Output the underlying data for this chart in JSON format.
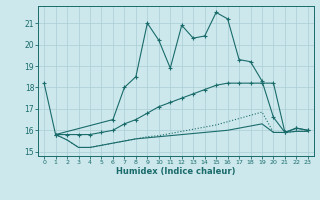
{
  "xlabel": "Humidex (Indice chaleur)",
  "bg_color": "#cce8ec",
  "grid_color": "#aacdd4",
  "line_color": "#1a6b6b",
  "xlim": [
    -0.5,
    23.5
  ],
  "ylim": [
    14.8,
    21.8
  ],
  "yticks": [
    15,
    16,
    17,
    18,
    19,
    20,
    21
  ],
  "xticks": [
    0,
    1,
    2,
    3,
    4,
    5,
    6,
    7,
    8,
    9,
    10,
    11,
    12,
    13,
    14,
    15,
    16,
    17,
    18,
    19,
    20,
    21,
    22,
    23
  ],
  "line1_x": [
    0,
    1,
    6,
    7,
    8,
    9,
    10,
    11,
    12,
    13,
    14,
    15,
    16,
    17,
    18,
    19,
    20,
    21,
    22,
    23
  ],
  "line1_y": [
    18.2,
    15.8,
    16.5,
    18.0,
    18.5,
    21.0,
    20.2,
    18.9,
    20.9,
    20.3,
    20.4,
    21.5,
    21.2,
    19.3,
    19.2,
    18.3,
    16.6,
    15.9,
    16.1,
    16.0
  ],
  "line2_x": [
    1,
    2,
    3,
    4,
    5,
    6,
    7,
    8,
    9,
    10,
    11,
    12,
    13,
    14,
    15,
    16,
    17,
    18,
    19,
    20,
    21,
    22,
    23
  ],
  "line2_y": [
    15.8,
    15.8,
    15.8,
    15.8,
    15.9,
    16.0,
    16.3,
    16.5,
    16.8,
    17.1,
    17.3,
    17.5,
    17.7,
    17.9,
    18.1,
    18.2,
    18.2,
    18.2,
    18.2,
    18.2,
    15.9,
    16.1,
    16.0
  ],
  "line3_x": [
    1,
    2,
    3,
    4,
    5,
    6,
    7,
    8,
    9,
    10,
    11,
    12,
    13,
    14,
    15,
    16,
    17,
    18,
    19,
    20,
    21,
    22,
    23
  ],
  "line3_y": [
    15.8,
    15.55,
    15.2,
    15.2,
    15.3,
    15.4,
    15.5,
    15.6,
    15.7,
    15.75,
    15.85,
    15.95,
    16.05,
    16.15,
    16.25,
    16.4,
    16.55,
    16.7,
    16.85,
    15.9,
    15.9,
    15.95,
    15.95
  ],
  "line4_x": [
    1,
    2,
    3,
    4,
    5,
    6,
    7,
    8,
    9,
    10,
    11,
    12,
    13,
    14,
    15,
    16,
    17,
    18,
    19,
    20,
    21,
    22,
    23
  ],
  "line4_y": [
    15.8,
    15.55,
    15.2,
    15.2,
    15.3,
    15.4,
    15.5,
    15.6,
    15.65,
    15.7,
    15.75,
    15.8,
    15.85,
    15.9,
    15.95,
    16.0,
    16.1,
    16.2,
    16.3,
    15.9,
    15.9,
    15.95,
    15.95
  ]
}
